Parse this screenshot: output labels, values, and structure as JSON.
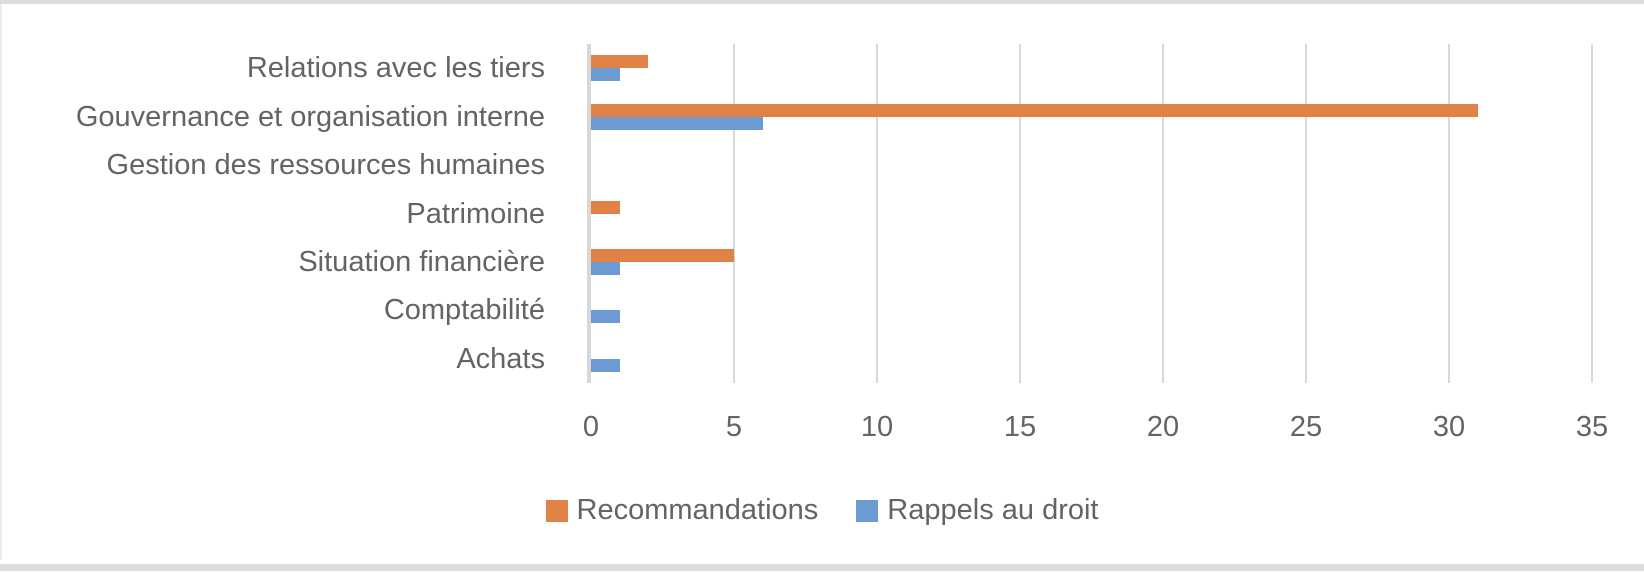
{
  "chart_data": {
    "type": "bar",
    "orientation": "horizontal",
    "title": "",
    "xlabel": "",
    "ylabel": "",
    "categories": [
      "Relations avec les tiers",
      "Gouvernance et organisation interne",
      "Gestion des ressources humaines",
      "Patrimoine",
      "Situation financière",
      "Comptabilité",
      "Achats"
    ],
    "series": [
      {
        "name": "Recommandations",
        "color": "#e08245",
        "values": [
          2,
          31,
          0,
          1,
          5,
          0,
          0
        ]
      },
      {
        "name": "Rappels au droit",
        "color": "#6b9bd2",
        "values": [
          1,
          6,
          0,
          0,
          1,
          1,
          1
        ]
      }
    ],
    "x_ticks": [
      0,
      5,
      10,
      15,
      20,
      25,
      30,
      35
    ],
    "xlim": [
      0,
      35
    ],
    "grid": true,
    "legend_position": "bottom"
  },
  "colors": {
    "gridline": "#d9d9d9",
    "axis_line": "#d7d7d7",
    "text": "#646464",
    "frame": "#dcdcdc",
    "background": "#ffffff"
  }
}
